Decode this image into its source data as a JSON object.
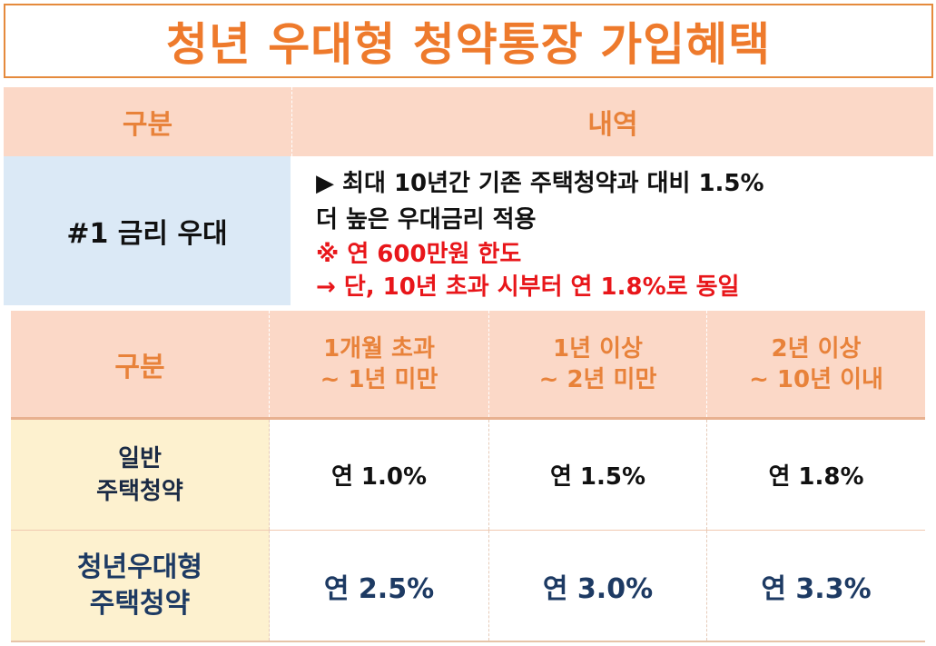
{
  "title": "청년 우대형 청약통장 가입혜택",
  "table1": {
    "header": {
      "col1": "구분",
      "col2": "내역"
    },
    "row": {
      "label": "#1 금리 우대",
      "lines": [
        "▶ 최대 10년간 기존 주택청약과 대비 1.5%",
        "더 높은 우대금리 적용",
        "※ 연 600만원 한도",
        "→ 단, 10년 초과 시부터 연 1.8%로 동일"
      ]
    }
  },
  "table2": {
    "header": {
      "label": "구분",
      "periods": [
        {
          "line1": "1개월 초과",
          "line2": "~ 1년 미만"
        },
        {
          "line1": "1년 이상",
          "line2": "~  2년 미만"
        },
        {
          "line1": "2년 이상",
          "line2": "~ 10년 이내"
        }
      ]
    },
    "rows": [
      {
        "label_line1": "일반",
        "label_line2": "주택청약",
        "values": [
          "연 1.0%",
          "연 1.5%",
          "연 1.8%"
        ]
      },
      {
        "label_line1": "청년우대형",
        "label_line2": "주택청약",
        "values": [
          "연 2.5%",
          "연 3.0%",
          "연 3.3%"
        ]
      }
    ]
  },
  "colors": {
    "accent_orange": "#ee7a2c",
    "header_bg": "#fbd8c7",
    "label_blue_bg": "#dbe9f6",
    "label_yellow_bg": "#fdf1cf",
    "highlight_red": "#e8161a",
    "navy": "#1d3a63"
  }
}
